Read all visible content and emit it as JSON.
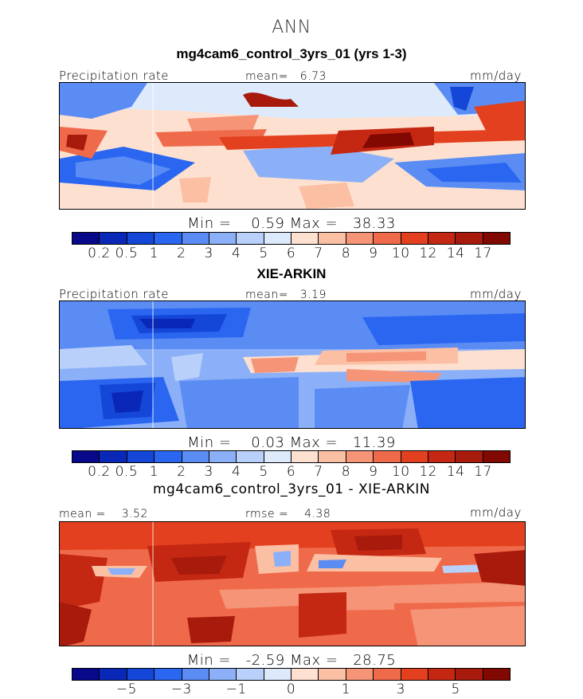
{
  "season": "ANN",
  "panels": [
    {
      "title": "mg4cam6_control_3yrs_01 (yrs 1-3)",
      "left_label": "Precipitation rate",
      "mid_label": "mean=",
      "mid_value": "6.73",
      "units": "mm/day",
      "min_label": "Min =",
      "min_value": "0.59",
      "max_label": "Max =",
      "max_value": "38.33",
      "ticks": [
        "0.2",
        "0.5",
        "1",
        "2",
        "3",
        "4",
        "5",
        "6",
        "7",
        "8",
        "9",
        "10",
        "12",
        "14",
        "17"
      ]
    },
    {
      "title": "XIE-ARKIN",
      "left_label": "Precipitation rate",
      "mid_label": "mean=",
      "mid_value": "3.19",
      "units": "mm/day",
      "min_label": "Min =",
      "min_value": "0.03",
      "max_label": "Max =",
      "max_value": "11.39",
      "ticks": [
        "0.2",
        "0.5",
        "1",
        "2",
        "3",
        "4",
        "5",
        "6",
        "7",
        "8",
        "9",
        "10",
        "12",
        "14",
        "17"
      ]
    },
    {
      "title": "mg4cam6_control_3yrs_01 - XIE-ARKIN",
      "left_label": "mean =",
      "left_value": "3.52",
      "mid_label": "rmse =",
      "mid_value": "4.38",
      "units": "mm/day",
      "min_label": "Min =",
      "min_value": "-2.59",
      "max_label": "Max =",
      "max_value": "28.75",
      "ticks": [
        "-5",
        "-3",
        "-1",
        "0",
        "1",
        "3",
        "5"
      ]
    }
  ],
  "colors": {
    "seq": [
      "#08088a",
      "#0a28b8",
      "#1446d8",
      "#2a66f0",
      "#5a8cf4",
      "#8cb0f8",
      "#b8d0fa",
      "#dceafc",
      "#fde0d0",
      "#fbbfa4",
      "#f59476",
      "#ef6a4a",
      "#e2401e",
      "#c42812",
      "#a81a0c",
      "#820802"
    ],
    "diff": [
      "#08088a",
      "#0a28b8",
      "#1446d8",
      "#2a66f0",
      "#5a8cf4",
      "#8cb0f8",
      "#b8d0fa",
      "#dceafc",
      "#fde0d0",
      "#fbbfa4",
      "#f59476",
      "#ef6a4a",
      "#e2401e",
      "#c42812",
      "#a81a0c",
      "#820802"
    ]
  }
}
